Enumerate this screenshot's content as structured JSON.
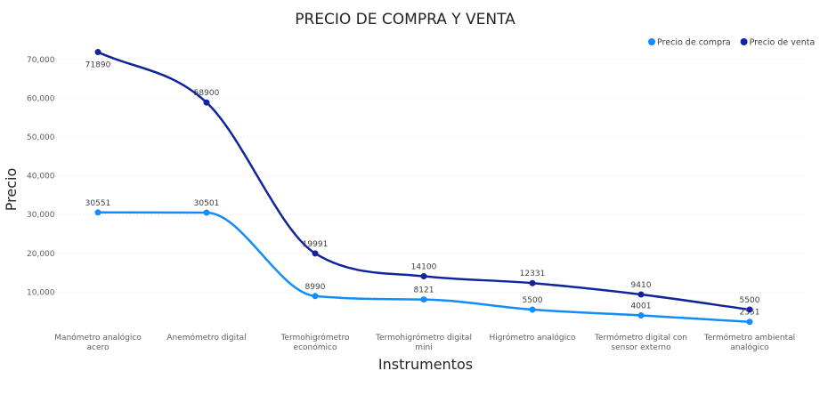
{
  "chart_data": {
    "type": "line",
    "title": "PRECIO DE COMPRA Y VENTA",
    "xlabel": "Instrumentos",
    "ylabel": "Precio",
    "ylim": [
      0,
      75000
    ],
    "yticks": [
      10000,
      20000,
      30000,
      40000,
      50000,
      60000,
      70000
    ],
    "ytick_labels": [
      "10,000",
      "20,000",
      "30,000",
      "40,000",
      "50,000",
      "60,000",
      "70,000"
    ],
    "grid": true,
    "legend_position": "top-right",
    "categories": [
      [
        "Manómetro analógico",
        "acero"
      ],
      [
        "Anemómetro digital"
      ],
      [
        "Termohigrómetro",
        "económico"
      ],
      [
        "Termohigrómetro digital",
        "mini"
      ],
      [
        "Higrómetro analógico"
      ],
      [
        "Termómetro digital con",
        "sensor externo"
      ],
      [
        "Termómetro ambiental",
        "analógico"
      ]
    ],
    "series": [
      {
        "name": "Precio de compra",
        "color": "#118dff",
        "values": [
          30551,
          30501,
          8990,
          8121,
          5500,
          4001,
          2351
        ]
      },
      {
        "name": "Precio de venta",
        "color": "#12239e",
        "values": [
          71890,
          58900,
          19991,
          14100,
          12331,
          9410,
          5500
        ]
      }
    ]
  }
}
